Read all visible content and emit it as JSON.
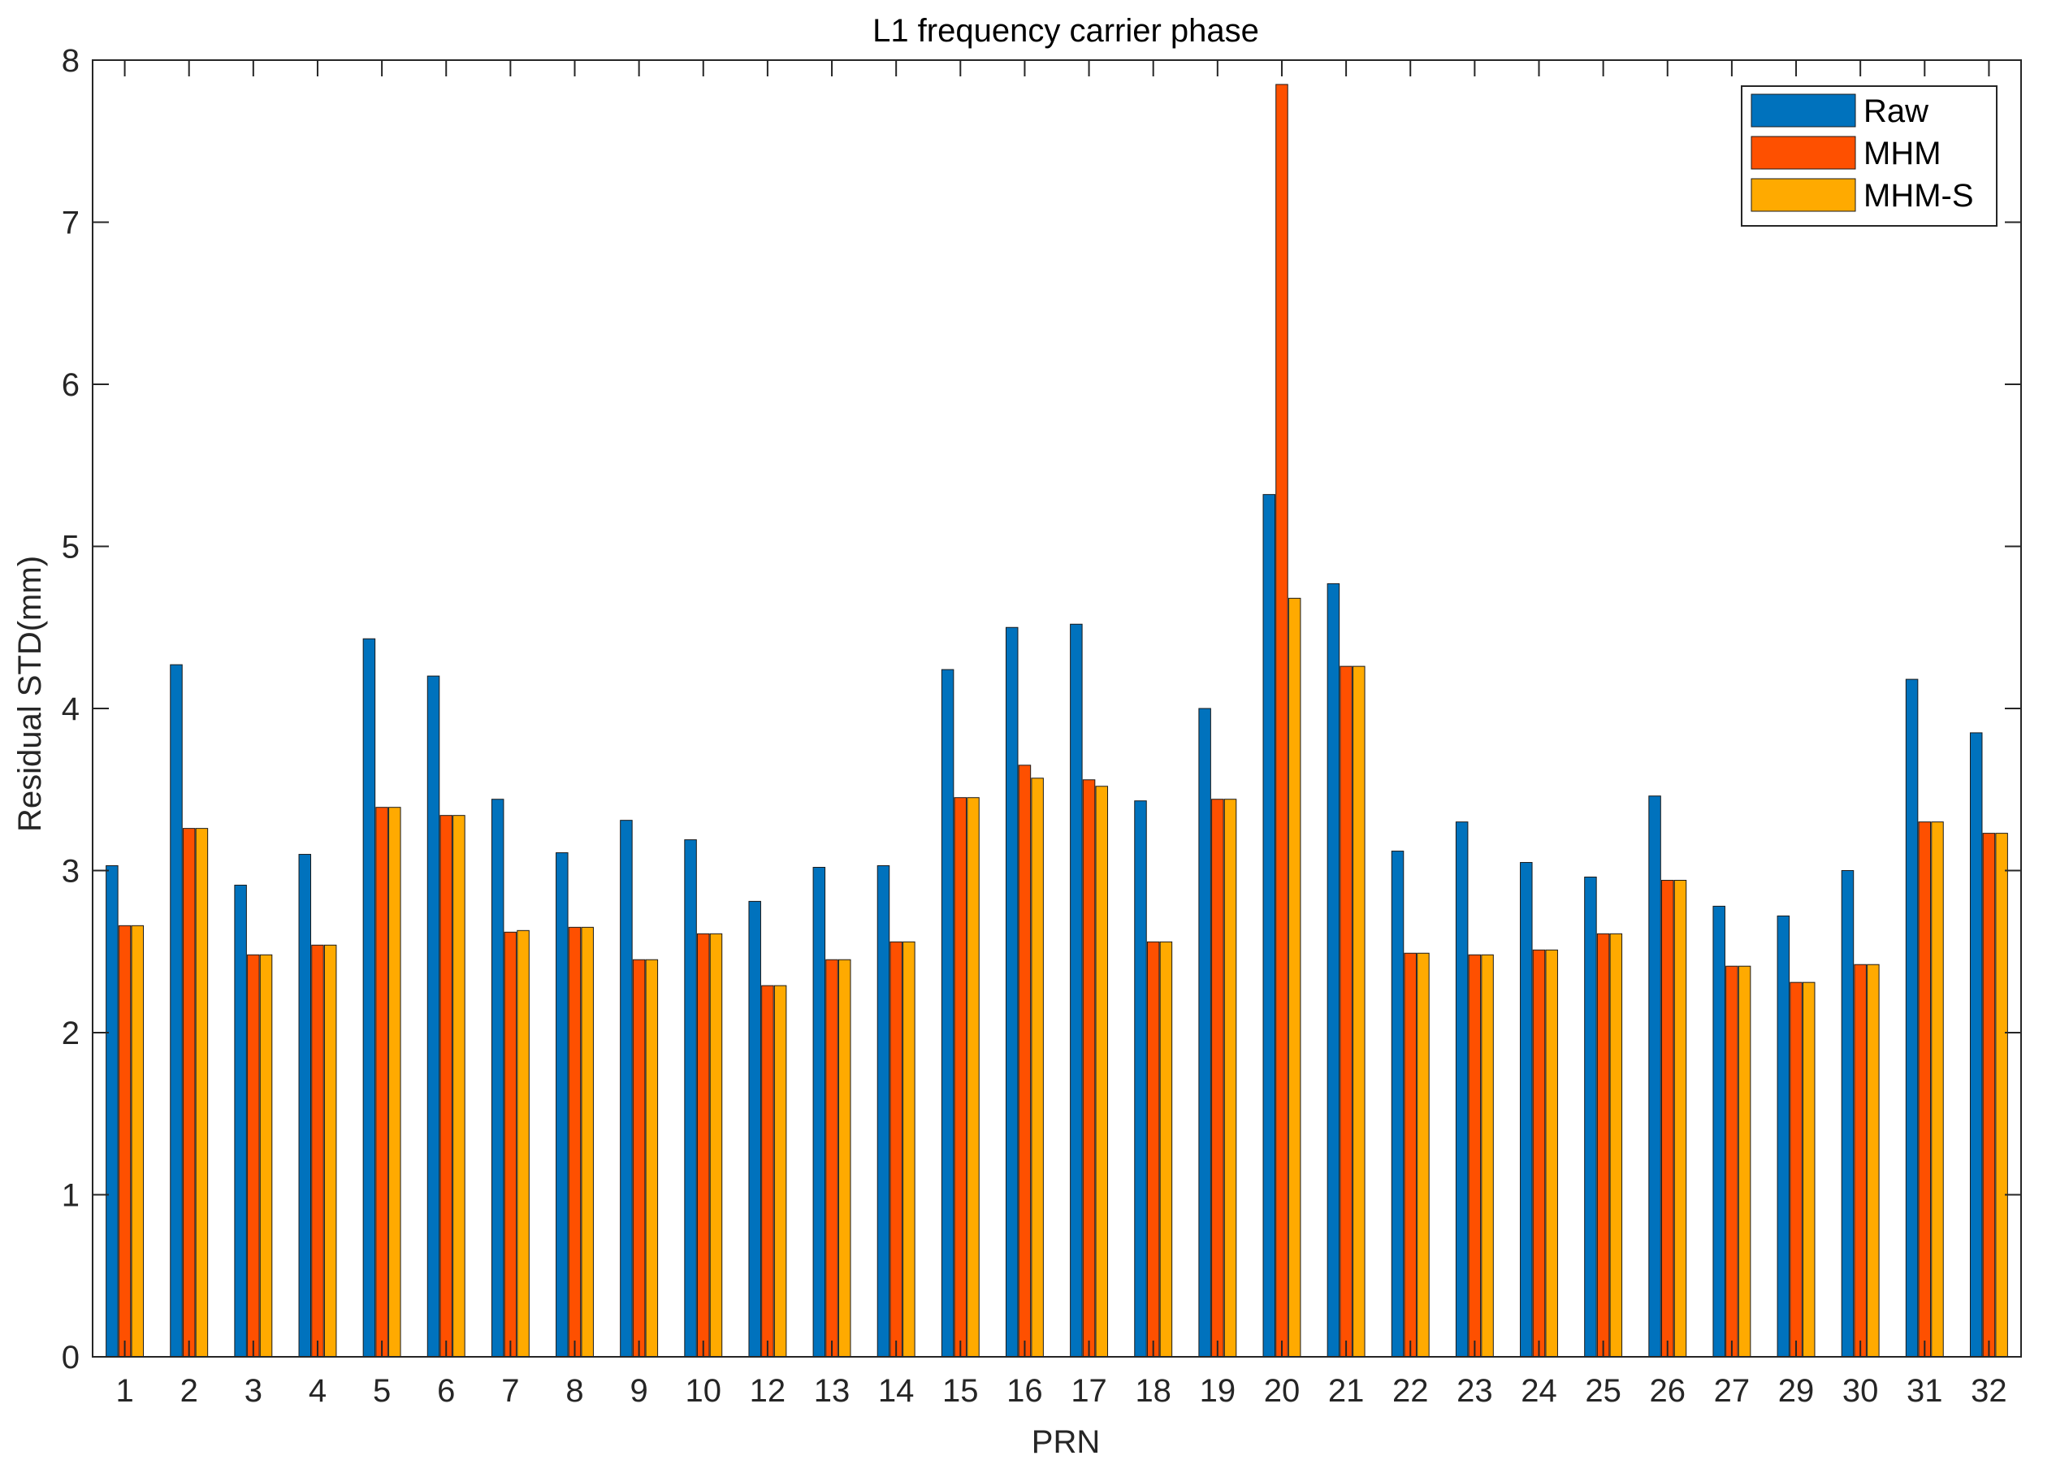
{
  "chart_data": {
    "type": "bar",
    "title": "L1 frequency carrier phase",
    "xlabel": "PRN",
    "ylabel": "Residual STD(mm)",
    "ylim": [
      0,
      8
    ],
    "yticks": [
      0,
      1,
      2,
      3,
      4,
      5,
      6,
      7,
      8
    ],
    "grid": false,
    "legend_position": "top-right",
    "categories": [
      "1",
      "2",
      "3",
      "4",
      "5",
      "6",
      "7",
      "8",
      "9",
      "10",
      "12",
      "13",
      "14",
      "15",
      "16",
      "17",
      "18",
      "19",
      "20",
      "21",
      "22",
      "23",
      "24",
      "25",
      "26",
      "27",
      "29",
      "30",
      "31",
      "32"
    ],
    "series": [
      {
        "name": "Raw",
        "color": "#0072BD",
        "values": [
          3.03,
          4.27,
          2.91,
          3.1,
          4.43,
          4.2,
          3.44,
          3.11,
          3.31,
          3.19,
          2.81,
          3.02,
          3.03,
          4.24,
          4.5,
          4.52,
          3.43,
          4.0,
          5.32,
          4.77,
          3.12,
          3.3,
          3.05,
          2.96,
          3.46,
          2.78,
          2.72,
          3.0,
          4.18,
          3.85
        ]
      },
      {
        "name": "MHM",
        "color": "#FE5000",
        "values": [
          2.66,
          3.26,
          2.48,
          2.54,
          3.39,
          3.34,
          2.62,
          2.65,
          2.45,
          2.61,
          2.29,
          2.45,
          2.56,
          3.45,
          3.65,
          3.56,
          2.56,
          3.44,
          7.85,
          4.26,
          2.49,
          2.48,
          2.51,
          2.61,
          2.94,
          2.41,
          2.31,
          2.42,
          3.3,
          3.23
        ]
      },
      {
        "name": "MHM-S",
        "color": "#FFAA00",
        "values": [
          2.66,
          3.26,
          2.48,
          2.54,
          3.39,
          3.34,
          2.63,
          2.65,
          2.45,
          2.61,
          2.29,
          2.45,
          2.56,
          3.45,
          3.57,
          3.52,
          2.56,
          3.44,
          4.68,
          4.26,
          2.49,
          2.48,
          2.51,
          2.61,
          2.94,
          2.41,
          2.31,
          2.42,
          3.3,
          3.23
        ]
      }
    ]
  }
}
